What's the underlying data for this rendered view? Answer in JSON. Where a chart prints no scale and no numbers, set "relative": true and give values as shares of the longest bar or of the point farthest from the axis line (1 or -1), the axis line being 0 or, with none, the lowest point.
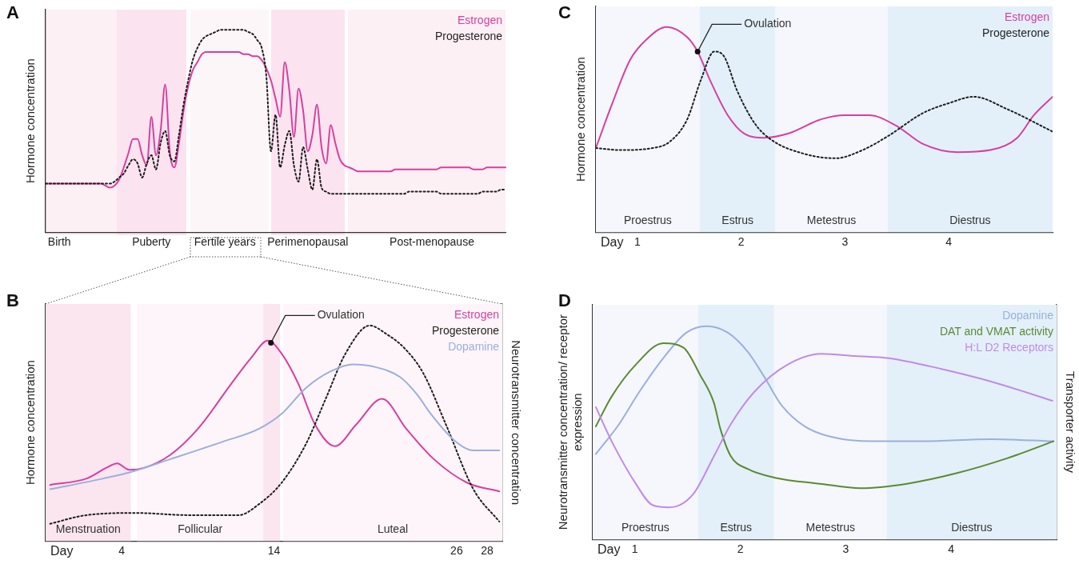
{
  "chart_data": [
    {
      "type": "line",
      "title": "A",
      "ylabel": "Hormone concentration",
      "relative": true,
      "categories": [
        null,
        null,
        null,
        "Birth",
        null,
        null,
        null,
        null,
        null,
        null,
        null,
        null,
        null,
        null,
        null,
        null,
        null,
        null,
        null,
        null,
        null,
        null,
        null,
        "Puberty",
        null,
        null,
        null,
        null,
        null,
        null,
        null,
        null,
        null,
        null,
        null,
        null,
        null,
        null,
        null,
        "Fertile years",
        null,
        null,
        null,
        null,
        null,
        null,
        null,
        null,
        null,
        null,
        null,
        null,
        null,
        null,
        null,
        null,
        null,
        "Perimenopausal",
        null,
        null,
        null,
        null,
        null,
        null,
        null,
        null,
        null,
        null,
        null,
        null,
        null,
        null,
        null,
        null,
        null,
        null,
        null,
        null,
        null,
        null,
        null,
        null,
        null,
        null,
        "Post-menopause",
        null,
        null,
        null,
        null,
        null,
        null,
        null,
        null,
        null,
        null,
        null,
        null,
        null,
        null,
        null,
        null
      ],
      "series": [
        {
          "name": "Estrogen",
          "color": "#d63fa0",
          "values": [
            0.24,
            0.24,
            0.24,
            0.24,
            0.24,
            0.24,
            0.24,
            0.24,
            0.24,
            0.24,
            0.24,
            0.24,
            0.24,
            0.23,
            0.22,
            0.23,
            0.26,
            0.32,
            0.39,
            0.46,
            0.46,
            0.38,
            0.33,
            0.57,
            0.38,
            0.5,
            0.73,
            0.4,
            0.32,
            0.44,
            0.6,
            0.72,
            0.8,
            0.84,
            0.88,
            0.89,
            0.89,
            0.89,
            0.89,
            0.89,
            0.89,
            0.89,
            0.89,
            0.88,
            0.88,
            0.87,
            0.87,
            0.85,
            0.81,
            0.75,
            0.66,
            0.57,
            0.84,
            0.7,
            0.47,
            0.71,
            0.6,
            0.4,
            0.48,
            0.63,
            0.42,
            0.34,
            0.53,
            0.44,
            0.36,
            0.33,
            0.32,
            0.31,
            0.3,
            0.3,
            0.3,
            0.3,
            0.3,
            0.3,
            0.3,
            0.3,
            0.31,
            0.31,
            0.31,
            0.31,
            0.31,
            0.31,
            0.31,
            0.31,
            0.31,
            0.31,
            0.32,
            0.32,
            0.32,
            0.32,
            0.32,
            0.32,
            0.32,
            0.31,
            0.31,
            0.31,
            0.32,
            0.32,
            0.32,
            0.32,
            0.32
          ]
        },
        {
          "name": "Progesterone",
          "color": "#1e1e1e",
          "line_style": "dotted",
          "values": [
            0.24,
            0.24,
            0.24,
            0.24,
            0.24,
            0.24,
            0.24,
            0.24,
            0.24,
            0.24,
            0.24,
            0.24,
            0.24,
            0.24,
            0.24,
            0.25,
            0.27,
            0.29,
            0.33,
            0.36,
            0.34,
            0.27,
            0.34,
            0.38,
            0.31,
            0.44,
            0.5,
            0.38,
            0.35,
            0.48,
            0.63,
            0.75,
            0.85,
            0.91,
            0.95,
            0.97,
            0.98,
            0.99,
            1,
            1,
            1,
            1,
            1,
            1,
            0.99,
            0.98,
            0.95,
            0.91,
            0.77,
            0.4,
            0.58,
            0.32,
            0.43,
            0.5,
            0.33,
            0.25,
            0.42,
            0.31,
            0.21,
            0.36,
            0.22,
            0.2,
            0.19,
            0.19,
            0.19,
            0.19,
            0.19,
            0.19,
            0.19,
            0.19,
            0.19,
            0.19,
            0.19,
            0.19,
            0.19,
            0.19,
            0.19,
            0.19,
            0.19,
            0.2,
            0.2,
            0.2,
            0.2,
            0.2,
            0.2,
            0.2,
            0.19,
            0.19,
            0.19,
            0.19,
            0.19,
            0.19,
            0.19,
            0.19,
            0.19,
            0.2,
            0.2,
            0.2,
            0.2,
            0.21,
            0.21
          ]
        }
      ]
    },
    {
      "type": "line",
      "title": "B",
      "xlabel": "Day",
      "ylabel": "Hormone concentration",
      "y2label": "Neurotransmitter concentration",
      "relative": true,
      "xlim": [
        -1,
        29
      ],
      "xticks": [
        4,
        14,
        26,
        28
      ],
      "bands": [
        {
          "axis": "x",
          "from": -1,
          "to": 4.6,
          "label": "Menstruation",
          "color": "#fbe5ef"
        },
        {
          "axis": "x",
          "from": 5,
          "to": 13.3,
          "label": "Follicular",
          "color": "#fdf5f9"
        },
        {
          "axis": "x",
          "from": 13.3,
          "to": 14.4,
          "color": "#fbe5ef"
        },
        {
          "axis": "x",
          "from": 14.6,
          "to": 29,
          "label": "Luteal",
          "color": "#fdf5f9"
        }
      ],
      "annotations": [
        {
          "text": "Ovulation",
          "x": 13.8,
          "y": 0.92
        }
      ],
      "series": [
        {
          "name": "Estrogen",
          "color": "#d63fa0",
          "x": [
            -0.7,
            1.7,
            3,
            3.7,
            4.5,
            5.5,
            7.2,
            9,
            11.2,
            12.5,
            13.6,
            14.5,
            15.6,
            16.7,
            18,
            19.4,
            21.1,
            22.7,
            24.5,
            26.7,
            28.8
          ],
          "values": [
            0.26,
            0.29,
            0.34,
            0.36,
            0.33,
            0.34,
            0.4,
            0.52,
            0.73,
            0.85,
            0.93,
            0.87,
            0.73,
            0.54,
            0.44,
            0.54,
            0.66,
            0.52,
            0.38,
            0.27,
            0.23
          ]
        },
        {
          "name": "Progesterone",
          "color": "#1e1e1e",
          "line_style": "dotted",
          "x": [
            -0.7,
            1.7,
            5,
            8.3,
            11.7,
            13,
            14.5,
            16.1,
            17.4,
            18.7,
            20.3,
            21.4,
            22.5,
            23.8,
            25.3,
            27.1,
            28.8
          ],
          "values": [
            0.08,
            0.12,
            0.13,
            0.12,
            0.12,
            0.17,
            0.27,
            0.45,
            0.66,
            0.87,
            1,
            0.96,
            0.9,
            0.78,
            0.54,
            0.24,
            0.09
          ]
        },
        {
          "name": "Dopamine",
          "color": "#9bb0dc",
          "x": [
            -0.7,
            2.8,
            4.6,
            7.2,
            10.6,
            13,
            14.5,
            16.1,
            17.8,
            19.2,
            20.5,
            22.3,
            23.4,
            24.3,
            25.8,
            27.1,
            28.8
          ],
          "values": [
            0.24,
            0.29,
            0.32,
            0.38,
            0.46,
            0.52,
            0.59,
            0.71,
            0.79,
            0.82,
            0.81,
            0.76,
            0.68,
            0.59,
            0.47,
            0.42,
            0.42
          ]
        }
      ]
    },
    {
      "type": "line",
      "title": "C",
      "xlabel": "Day",
      "ylabel": "Hormone concentration",
      "relative": true,
      "xlim": [
        0.6,
        5
      ],
      "xticks": [
        1,
        2,
        3,
        4
      ],
      "bands": [
        {
          "axis": "x",
          "from": 0.6,
          "to": 1.6,
          "label": "Proestrus",
          "color": "#f5f7fc"
        },
        {
          "axis": "x",
          "from": 1.6,
          "to": 2.33,
          "label": "Estrus",
          "color": "#e3f0f9"
        },
        {
          "axis": "x",
          "from": 2.33,
          "to": 3.41,
          "label": "Metestrus",
          "color": "#f5f7fc"
        },
        {
          "axis": "x",
          "from": 3.41,
          "to": 5,
          "label": "Diestrus",
          "color": "#e3f0f9"
        }
      ],
      "annotations": [
        {
          "text": "Ovulation",
          "x": 1.58,
          "y": 0.88
        }
      ],
      "series": [
        {
          "name": "Estrogen",
          "color": "#d63fa0",
          "x": [
            0.6,
            0.76,
            0.93,
            1.09,
            1.28,
            1.48,
            1.58,
            1.7,
            1.87,
            2.03,
            2.22,
            2.45,
            2.77,
            3,
            3.23,
            3.49,
            3.75,
            4.08,
            4.4,
            4.66,
            4.82,
            5
          ],
          "values": [
            0.41,
            0.63,
            0.84,
            0.94,
            1,
            0.95,
            0.88,
            0.74,
            0.57,
            0.48,
            0.46,
            0.48,
            0.55,
            0.57,
            0.57,
            0.52,
            0.43,
            0.39,
            0.4,
            0.46,
            0.57,
            0.66
          ]
        },
        {
          "name": "Progesterone",
          "color": "#1e1e1e",
          "line_style": "dotted",
          "x": [
            0.6,
            0.83,
            1.15,
            1.31,
            1.48,
            1.61,
            1.74,
            1.83,
            1.96,
            2.13,
            2.29,
            2.62,
            2.91,
            3.17,
            3.42,
            3.75,
            4.01,
            4.24,
            4.56,
            5
          ],
          "values": [
            0.41,
            0.4,
            0.41,
            0.44,
            0.55,
            0.74,
            0.88,
            0.86,
            0.69,
            0.53,
            0.45,
            0.38,
            0.36,
            0.4,
            0.47,
            0.58,
            0.63,
            0.66,
            0.6,
            0.49
          ]
        }
      ]
    },
    {
      "type": "line",
      "title": "D",
      "xlabel": "Day",
      "ylabel": "Neurotransmitter concentration/ receptor expression",
      "y2label": "Transporter activity",
      "relative": true,
      "xlim": [
        0.6,
        5
      ],
      "xticks": [
        1,
        2,
        3,
        4
      ],
      "bands": [
        {
          "axis": "x",
          "from": 0.6,
          "to": 1.6,
          "label": "Proestrus",
          "color": "#f5f7fc"
        },
        {
          "axis": "x",
          "from": 1.6,
          "to": 2.32,
          "label": "Estrus",
          "color": "#e3f0f9"
        },
        {
          "axis": "x",
          "from": 2.32,
          "to": 3.39,
          "label": "Metestrus",
          "color": "#f5f7fc"
        },
        {
          "axis": "x",
          "from": 3.39,
          "to": 5,
          "label": "Diestrus",
          "color": "#e3f0f9"
        }
      ],
      "series": [
        {
          "name": "Dopamine",
          "color": "#9bb0dc",
          "x": [
            0.63,
            0.85,
            1.04,
            1.27,
            1.49,
            1.68,
            1.88,
            2.07,
            2.23,
            2.39,
            2.61,
            2.87,
            3.25,
            3.73,
            4.38,
            4.97
          ],
          "values": [
            0.4,
            0.54,
            0.69,
            0.85,
            0.97,
            1,
            0.97,
            0.88,
            0.76,
            0.63,
            0.53,
            0.48,
            0.46,
            0.46,
            0.47,
            0.46
          ]
        },
        {
          "name": "DAT and VMAT activity",
          "color": "#5b8a32",
          "x": [
            0.63,
            0.78,
            1.01,
            1.27,
            1.46,
            1.62,
            1.75,
            1.81,
            1.91,
            2.07,
            2.32,
            2.77,
            3.14,
            3.57,
            4.05,
            4.53,
            4.97
          ],
          "values": [
            0.53,
            0.67,
            0.82,
            0.92,
            0.9,
            0.77,
            0.64,
            0.52,
            0.39,
            0.33,
            0.29,
            0.26,
            0.24,
            0.26,
            0.31,
            0.38,
            0.46
          ]
        },
        {
          "name": "H:L D2 Receptors",
          "color": "#c28ae8",
          "x": [
            0.63,
            0.78,
            1.01,
            1.17,
            1.33,
            1.55,
            1.75,
            1.91,
            2.13,
            2.45,
            2.77,
            3.09,
            3.41,
            3.9,
            4.38,
            4.96
          ],
          "values": [
            0.62,
            0.46,
            0.26,
            0.16,
            0.15,
            0.21,
            0.39,
            0.54,
            0.69,
            0.82,
            0.87,
            0.86,
            0.85,
            0.8,
            0.74,
            0.65
          ]
        }
      ]
    }
  ]
}
